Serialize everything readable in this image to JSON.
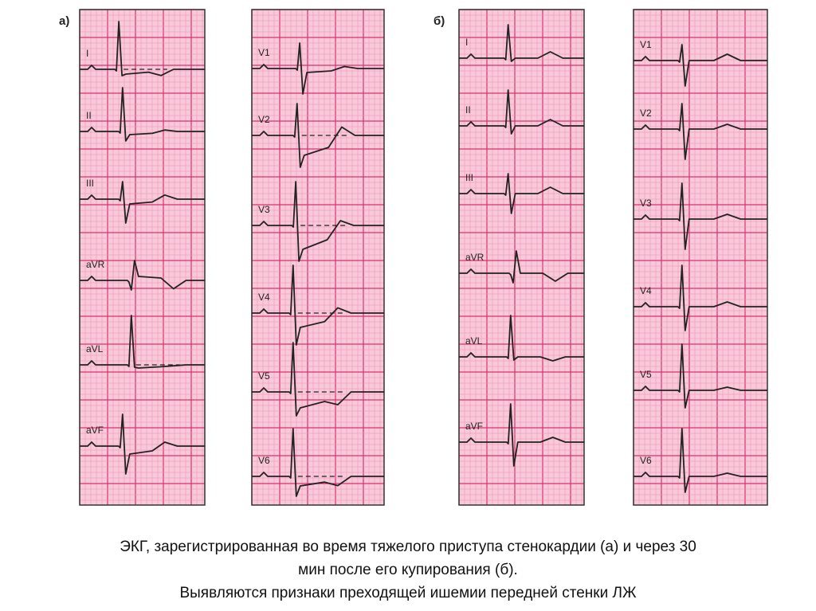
{
  "panels": [
    {
      "letter": "а)",
      "strips": [
        {
          "leads": [
            "I",
            "II",
            "III",
            "aVR",
            "aVL",
            "aVF"
          ]
        },
        {
          "leads": [
            "V1",
            "V2",
            "V3",
            "V4",
            "V5",
            "V6"
          ]
        }
      ]
    },
    {
      "letter": "б)",
      "strips": [
        {
          "leads": [
            "I",
            "II",
            "III",
            "aVR",
            "aVL",
            "aVF"
          ]
        },
        {
          "leads": [
            "V1",
            "V2",
            "V3",
            "V4",
            "V5",
            "V6"
          ]
        }
      ]
    }
  ],
  "colors": {
    "paper": "#f8c9d9",
    "grid_major": "#d9326f",
    "grid_minor": "#ee8fb2",
    "trace": "#222222"
  },
  "caption": {
    "line1": "ЭКГ, зарегистрированная во время тяжелого приступа стенокардии (а) и через 30",
    "line2": "мин после его купирования (б).",
    "line3": "Выявляются признаки преходящей ишемии передней стенки ЛЖ"
  }
}
